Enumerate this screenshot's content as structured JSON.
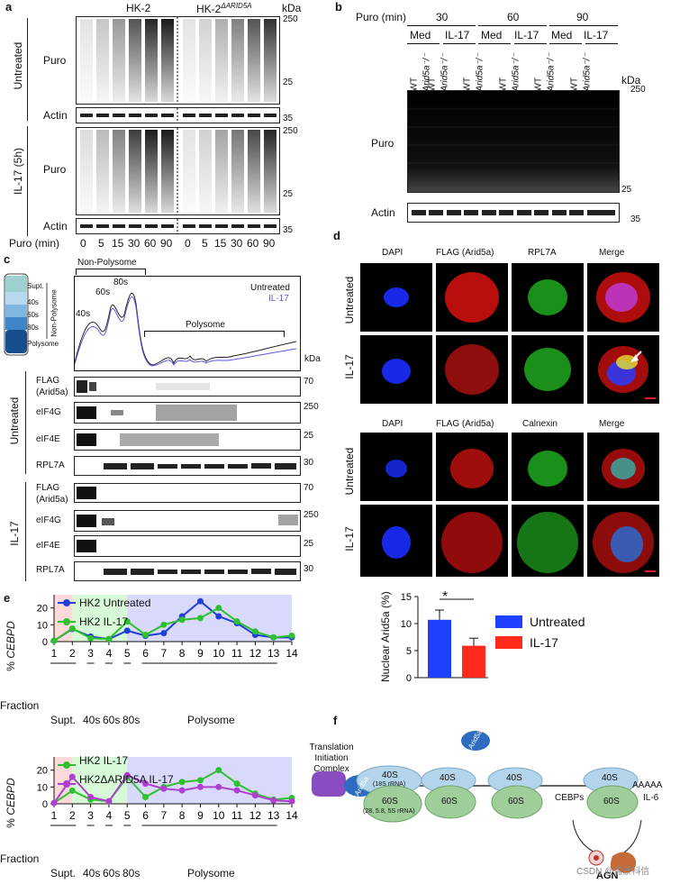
{
  "panel_a": {
    "letter": "a",
    "col_left": "HK-2",
    "col_right_base": "HK-2",
    "col_right_sup": "ΔARID5A",
    "kda": "kDa",
    "row_untreated": "Untreated",
    "row_il17": "IL-17 (5h)",
    "puro": "Puro",
    "actin": "Actin",
    "markers": [
      "250",
      "25",
      "35",
      "250",
      "25",
      "35"
    ],
    "xlabel": "Puro (min)",
    "lanes": [
      "0",
      "5",
      "15",
      "30",
      "60",
      "90",
      "0",
      "5",
      "15",
      "30",
      "60",
      "90"
    ]
  },
  "panel_b": {
    "letter": "b",
    "puro_min": "Puro (min)",
    "times": [
      "30",
      "60",
      "90"
    ],
    "conds": [
      "Med",
      "IL-17",
      "Med",
      "IL-17",
      "Med",
      "IL-17"
    ],
    "genotypes": [
      "WT",
      "Arid5a⁻/⁻",
      "WT",
      "Arid5a⁻/⁻",
      "WT",
      "Arid5a⁻/⁻",
      "WT",
      "Arid5a⁻/⁻",
      "WT",
      "Arid5a⁻/⁻",
      "WT",
      "Arid5a⁻/⁻"
    ],
    "kda": "kDa",
    "puro": "Puro",
    "actin": "Actin",
    "markers": [
      "250",
      "25",
      "35"
    ]
  },
  "panel_c": {
    "letter": "c",
    "tube_labels": [
      "Supt.",
      "40s",
      "60s",
      "80s",
      "Polysome"
    ],
    "tube_side": "Non-Polysome",
    "nonpoly": "Non-Polysome",
    "poly": "Polysome",
    "peaks": [
      "40s",
      "60s",
      "80s"
    ],
    "legend_untreated": "Untreated",
    "legend_il17": "IL-17",
    "kda": "kDa",
    "group_untreated": "Untreated",
    "group_il17": "IL-17",
    "blots": [
      {
        "label": "FLAG\n(Arid5a)",
        "marker": "70"
      },
      {
        "label": "eIF4G",
        "marker": "250"
      },
      {
        "label": "eIF4E",
        "marker": "25"
      },
      {
        "label": "RPL7A",
        "marker": "30"
      },
      {
        "label": "FLAG\n(Arid5a)",
        "marker": "70"
      },
      {
        "label": "eIF4G",
        "marker": "250"
      },
      {
        "label": "eIF4E",
        "marker": "25"
      },
      {
        "label": "RPL7A",
        "marker": "30"
      }
    ]
  },
  "panel_d": {
    "letter": "d",
    "row1_titles": [
      "DAPI",
      "FLAG (Arid5a)",
      "RPL7A",
      "Merge"
    ],
    "row2_titles": [
      "DAPI",
      "FLAG (Arid5a)",
      "Calnexin",
      "Merge"
    ],
    "row_labels": [
      "Untreated",
      "IL-17",
      "Untreated",
      "IL-17"
    ],
    "bar_chart": {
      "ylabel": "Nuclear Arid5a (%)",
      "significance": "*",
      "legend": [
        "Untreated",
        "IL-17"
      ]
    }
  },
  "panel_e": {
    "letter": "e",
    "ylabel_prefix": "% ",
    "ylabel_italic": "CEBPD",
    "fraction_label": "Fraction",
    "groups": [
      "Supt.",
      "40s",
      "60s",
      "80s",
      "Polysome"
    ]
  },
  "panel_f": {
    "letter": "f",
    "complex_label": [
      "Translation",
      "Initiation",
      "Complex"
    ],
    "arid5a": "Arid5a",
    "s40": "40S",
    "s40_sub": "(18S rRNA)",
    "s60": "60S",
    "s60_sub": "(28, 5.8, 5S rRNA)",
    "polya": "AAAAA",
    "cebps": "CEBPs",
    "il6": "IL-6",
    "agn": "AGN"
  },
  "watermark": "CSDN @盖景科信",
  "chart_data": [
    {
      "type": "bar",
      "categories": [
        "Untreated",
        "IL-17"
      ],
      "values": [
        10.7,
        5.9
      ],
      "errors": [
        1.8,
        1.4
      ],
      "ylabel": "Nuclear Arid5a (%)",
      "ylim": [
        0,
        15
      ],
      "yticks": [
        0,
        5,
        10,
        15
      ],
      "colors": [
        "#1f3fff",
        "#ff2a1a"
      ],
      "legend_placement": "right"
    },
    {
      "type": "line",
      "x": [
        1,
        2,
        3,
        4,
        5,
        6,
        7,
        8,
        9,
        10,
        11,
        12,
        13,
        14
      ],
      "series": [
        {
          "name": "HK2 Untreated",
          "color": "#1f3fd8",
          "values": [
            0.5,
            7.5,
            3,
            1.5,
            6.5,
            3.5,
            5,
            15,
            24,
            15,
            11,
            4,
            2.5,
            2.5
          ]
        },
        {
          "name": "HK2 IL-17",
          "color": "#2ec02e",
          "values": [
            0.5,
            7.8,
            2,
            1.5,
            12,
            4,
            10,
            13,
            14,
            20,
            12,
            6,
            2.5,
            3.5
          ]
        }
      ],
      "xlabel": "Fraction",
      "ylim": [
        0,
        30
      ],
      "yticks": [
        0,
        10,
        20,
        30
      ],
      "bands": [
        {
          "from": 1,
          "to": 2,
          "color": "#fdd9d9"
        },
        {
          "from": 2,
          "to": 5,
          "color": "#d8f9d8"
        },
        {
          "from": 5,
          "to": 14,
          "color": "#d9d9fb"
        }
      ]
    },
    {
      "type": "line",
      "x": [
        1,
        2,
        3,
        4,
        5,
        6,
        7,
        8,
        9,
        10,
        11,
        12,
        13,
        14
      ],
      "series": [
        {
          "name": "HK2 IL-17",
          "color": "#2ec02e",
          "values": [
            0.5,
            7.8,
            2.5,
            1.5,
            16,
            4,
            10,
            13,
            14,
            20,
            12,
            6,
            2.5,
            3.5
          ]
        },
        {
          "name": "HK2ΔARID5A IL-17",
          "color": "#b03fd0",
          "values": [
            0.5,
            16,
            4,
            1.5,
            17,
            12,
            9,
            8,
            10,
            10,
            8,
            5,
            2,
            1.5
          ]
        }
      ],
      "xlabel": "Fraction",
      "ylim": [
        0,
        30
      ],
      "yticks": [
        0,
        10,
        20,
        30
      ],
      "bands": [
        {
          "from": 1,
          "to": 2,
          "color": "#fdd9d9"
        },
        {
          "from": 2,
          "to": 5,
          "color": "#d8f9d8"
        },
        {
          "from": 5,
          "to": 14,
          "color": "#d9d9fb"
        }
      ]
    }
  ]
}
